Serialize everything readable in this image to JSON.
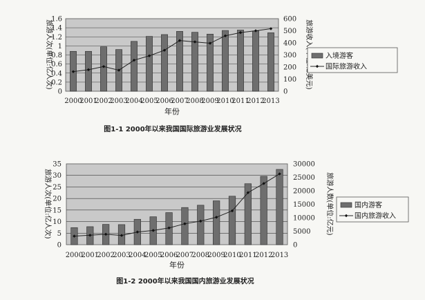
{
  "chart_data": [
    {
      "type": "bar",
      "title": "",
      "categories": [
        "2000",
        "2001",
        "2002",
        "2003",
        "2004",
        "2005",
        "2006",
        "2007",
        "2008",
        "2009",
        "2010",
        "2011",
        "2012",
        "2013"
      ],
      "ylabel_left": "旅游人次(单位:亿人次)",
      "ylabel_right": "旅游收入(单位:亿美元)",
      "xlabel": "年份",
      "ylim_left": [
        0,
        1.6
      ],
      "ylim_right": [
        0,
        600
      ],
      "yticks_left": [
        "0",
        "0.2",
        "0.4",
        "0.6",
        "0.8",
        "1",
        "1.2",
        "1.4",
        "1.6"
      ],
      "yticks_right": [
        "0",
        "100",
        "200",
        "300",
        "400",
        "500",
        "600"
      ],
      "grid": true,
      "legend_position": "right",
      "series": [
        {
          "name": "入境游客",
          "type": "bar",
          "axis": "left",
          "values": [
            0.88,
            0.88,
            0.98,
            0.92,
            1.1,
            1.21,
            1.25,
            1.32,
            1.3,
            1.26,
            1.34,
            1.35,
            1.33,
            1.29
          ]
        },
        {
          "name": "国际旅游收入",
          "type": "line",
          "axis": "right",
          "values": [
            162,
            178,
            204,
            174,
            257,
            293,
            339,
            419,
            408,
            397,
            458,
            485,
            500,
            517
          ]
        }
      ],
      "caption": "图1-1  2000年以来我国国际旅游业发展状况"
    },
    {
      "type": "bar",
      "title": "",
      "categories": [
        "2000",
        "2001",
        "2002",
        "2003",
        "2004",
        "2005",
        "2006",
        "2007",
        "2008",
        "2009",
        "2010",
        "2011",
        "2012",
        "2013"
      ],
      "ylabel_left": "旅游人次(单位:亿人次)",
      "ylabel_right": "旅游人数(单位:亿元)",
      "xlabel": "年份",
      "ylim_left": [
        0,
        35
      ],
      "ylim_right": [
        0,
        30000
      ],
      "yticks_left": [
        "0",
        "5",
        "10",
        "15",
        "20",
        "25",
        "30",
        "35"
      ],
      "yticks_right": [
        "0",
        "5000",
        "10000",
        "15000",
        "20000",
        "25000",
        "30000"
      ],
      "grid": true,
      "legend_position": "right",
      "series": [
        {
          "name": "国内游客",
          "type": "bar",
          "axis": "left",
          "values": [
            7.4,
            7.8,
            8.8,
            8.7,
            11.0,
            12.1,
            13.9,
            16.1,
            17.1,
            19.0,
            21.0,
            26.4,
            29.6,
            32.6
          ]
        },
        {
          "name": "国内旅游收入",
          "type": "line",
          "axis": "right",
          "values": [
            3175,
            3522,
            3878,
            3442,
            4711,
            5286,
            6230,
            7771,
            8749,
            10184,
            12580,
            19305,
            22706,
            26276
          ]
        }
      ],
      "caption": "图1-2 2000年以来我国国内旅游业发展状况"
    }
  ]
}
